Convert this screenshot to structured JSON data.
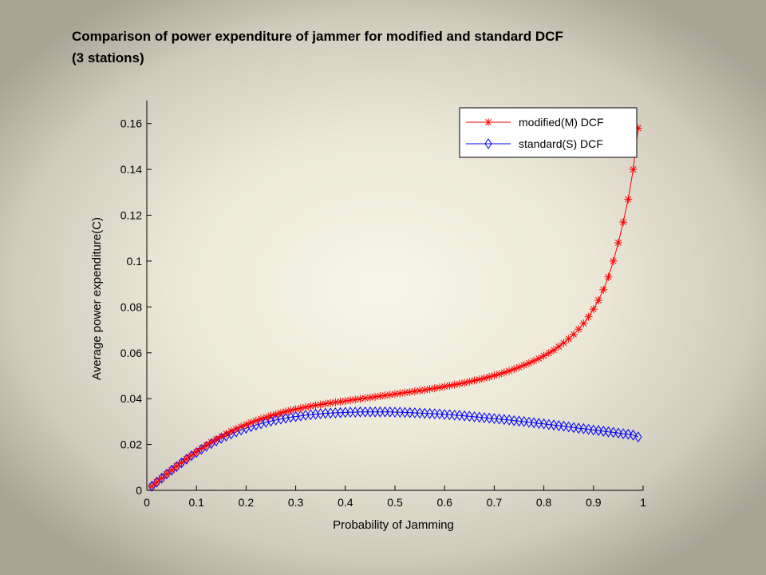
{
  "slide": {
    "title_line1": "Comparison of power expenditure of jammer for modified and standard DCF",
    "title_line2": "(3 stations)"
  },
  "chart_data": {
    "type": "line",
    "title": "",
    "xlabel": "Probability of Jamming",
    "ylabel": "Average power expenditure(C)",
    "xlim": [
      0,
      1
    ],
    "ylim": [
      0,
      0.17
    ],
    "xticks": [
      0,
      0.1,
      0.2,
      0.3,
      0.4,
      0.5,
      0.6,
      0.7,
      0.8,
      0.9,
      1
    ],
    "xtick_labels": [
      "0",
      "0.1",
      "0.2",
      "0.3",
      "0.4",
      "0.5",
      "0.6",
      "0.7",
      "0.8",
      "0.9",
      "1"
    ],
    "yticks": [
      0,
      0.02,
      0.04,
      0.06,
      0.08,
      0.1,
      0.12,
      0.14,
      0.16
    ],
    "ytick_labels": [
      "0",
      "0.02",
      "0.04",
      "0.06",
      "0.08",
      "0.1",
      "0.12",
      "0.14",
      "0.16"
    ],
    "grid": false,
    "legend_position": "top-right",
    "series": [
      {
        "name": "modified(M) DCF",
        "color": "#ff0000",
        "marker": "asterisk",
        "x": [
          0.01,
          0.02,
          0.03,
          0.04,
          0.05,
          0.06,
          0.07,
          0.08,
          0.09,
          0.1,
          0.11,
          0.12,
          0.13,
          0.14,
          0.15,
          0.16,
          0.17,
          0.18,
          0.19,
          0.2,
          0.21,
          0.22,
          0.23,
          0.24,
          0.25,
          0.26,
          0.27,
          0.28,
          0.29,
          0.3,
          0.31,
          0.32,
          0.33,
          0.34,
          0.35,
          0.36,
          0.37,
          0.38,
          0.39,
          0.4,
          0.41,
          0.42,
          0.43,
          0.44,
          0.45,
          0.46,
          0.47,
          0.48,
          0.49,
          0.5,
          0.51,
          0.52,
          0.53,
          0.54,
          0.55,
          0.56,
          0.57,
          0.58,
          0.59,
          0.6,
          0.61,
          0.62,
          0.63,
          0.64,
          0.65,
          0.66,
          0.67,
          0.68,
          0.69,
          0.7,
          0.71,
          0.72,
          0.73,
          0.74,
          0.75,
          0.76,
          0.77,
          0.78,
          0.79,
          0.8,
          0.81,
          0.82,
          0.83,
          0.84,
          0.85,
          0.86,
          0.87,
          0.88,
          0.89,
          0.9,
          0.91,
          0.92,
          0.93,
          0.94,
          0.95,
          0.96,
          0.97,
          0.98,
          0.99
        ],
        "y": [
          0.0018,
          0.0036,
          0.0053,
          0.0071,
          0.0088,
          0.0105,
          0.0121,
          0.0137,
          0.0153,
          0.0168,
          0.0183,
          0.0197,
          0.021,
          0.0223,
          0.0235,
          0.0247,
          0.0258,
          0.0268,
          0.0278,
          0.0287,
          0.0296,
          0.0304,
          0.0312,
          0.0319,
          0.0326,
          0.0332,
          0.0338,
          0.0344,
          0.0349,
          0.0354,
          0.0358,
          0.0363,
          0.0367,
          0.0371,
          0.0374,
          0.0378,
          0.0381,
          0.0384,
          0.0387,
          0.039,
          0.0393,
          0.0396,
          0.0399,
          0.0402,
          0.0405,
          0.0408,
          0.0411,
          0.0414,
          0.0417,
          0.042,
          0.0423,
          0.0426,
          0.0429,
          0.0432,
          0.0435,
          0.0438,
          0.0442,
          0.0445,
          0.0449,
          0.0453,
          0.0457,
          0.0461,
          0.0465,
          0.0469,
          0.0474,
          0.0479,
          0.0484,
          0.0489,
          0.0495,
          0.0501,
          0.0507,
          0.0514,
          0.0521,
          0.0529,
          0.0537,
          0.0546,
          0.0555,
          0.0565,
          0.0575,
          0.0587,
          0.0599,
          0.0612,
          0.0627,
          0.0643,
          0.0661,
          0.068,
          0.0703,
          0.0728,
          0.0757,
          0.079,
          0.0829,
          0.0875,
          0.0931,
          0.1,
          0.108,
          0.117,
          0.127,
          0.14,
          0.158
        ]
      },
      {
        "name": "standard(S) DCF",
        "color": "#0000ff",
        "marker": "diamond",
        "x": [
          0.01,
          0.02,
          0.03,
          0.04,
          0.05,
          0.06,
          0.07,
          0.08,
          0.09,
          0.1,
          0.11,
          0.12,
          0.13,
          0.14,
          0.15,
          0.16,
          0.17,
          0.18,
          0.19,
          0.2,
          0.21,
          0.22,
          0.23,
          0.24,
          0.25,
          0.26,
          0.27,
          0.28,
          0.29,
          0.3,
          0.31,
          0.32,
          0.33,
          0.34,
          0.35,
          0.36,
          0.37,
          0.38,
          0.39,
          0.4,
          0.41,
          0.42,
          0.43,
          0.44,
          0.45,
          0.46,
          0.47,
          0.48,
          0.49,
          0.5,
          0.51,
          0.52,
          0.53,
          0.54,
          0.55,
          0.56,
          0.57,
          0.58,
          0.59,
          0.6,
          0.61,
          0.62,
          0.63,
          0.64,
          0.65,
          0.66,
          0.67,
          0.68,
          0.69,
          0.7,
          0.71,
          0.72,
          0.73,
          0.74,
          0.75,
          0.76,
          0.77,
          0.78,
          0.79,
          0.8,
          0.81,
          0.82,
          0.83,
          0.84,
          0.85,
          0.86,
          0.87,
          0.88,
          0.89,
          0.9,
          0.91,
          0.92,
          0.93,
          0.94,
          0.95,
          0.96,
          0.97,
          0.98,
          0.99
        ],
        "y": [
          0.0018,
          0.0036,
          0.0053,
          0.0071,
          0.0088,
          0.0104,
          0.012,
          0.0136,
          0.0151,
          0.0165,
          0.0179,
          0.0192,
          0.0204,
          0.0216,
          0.0227,
          0.0237,
          0.0246,
          0.0255,
          0.0263,
          0.0271,
          0.0278,
          0.0285,
          0.0291,
          0.0297,
          0.0302,
          0.0307,
          0.0311,
          0.0315,
          0.0319,
          0.0322,
          0.0325,
          0.0328,
          0.033,
          0.0332,
          0.0334,
          0.0336,
          0.0337,
          0.0338,
          0.0339,
          0.034,
          0.0341,
          0.0341,
          0.0342,
          0.0342,
          0.0342,
          0.0342,
          0.0342,
          0.0342,
          0.0342,
          0.0341,
          0.0341,
          0.034,
          0.0339,
          0.0338,
          0.0337,
          0.0336,
          0.0335,
          0.0334,
          0.0333,
          0.0331,
          0.033,
          0.0328,
          0.0327,
          0.0325,
          0.0323,
          0.0321,
          0.0319,
          0.0317,
          0.0315,
          0.0313,
          0.0311,
          0.0309,
          0.0307,
          0.0304,
          0.0302,
          0.03,
          0.0297,
          0.0295,
          0.0292,
          0.029,
          0.0287,
          0.0285,
          0.0282,
          0.028,
          0.0277,
          0.0274,
          0.0271,
          0.0269,
          0.0266,
          0.0263,
          0.0261,
          0.0258,
          0.0255,
          0.0253,
          0.025,
          0.0247,
          0.0245,
          0.0241,
          0.0233
        ]
      }
    ]
  }
}
